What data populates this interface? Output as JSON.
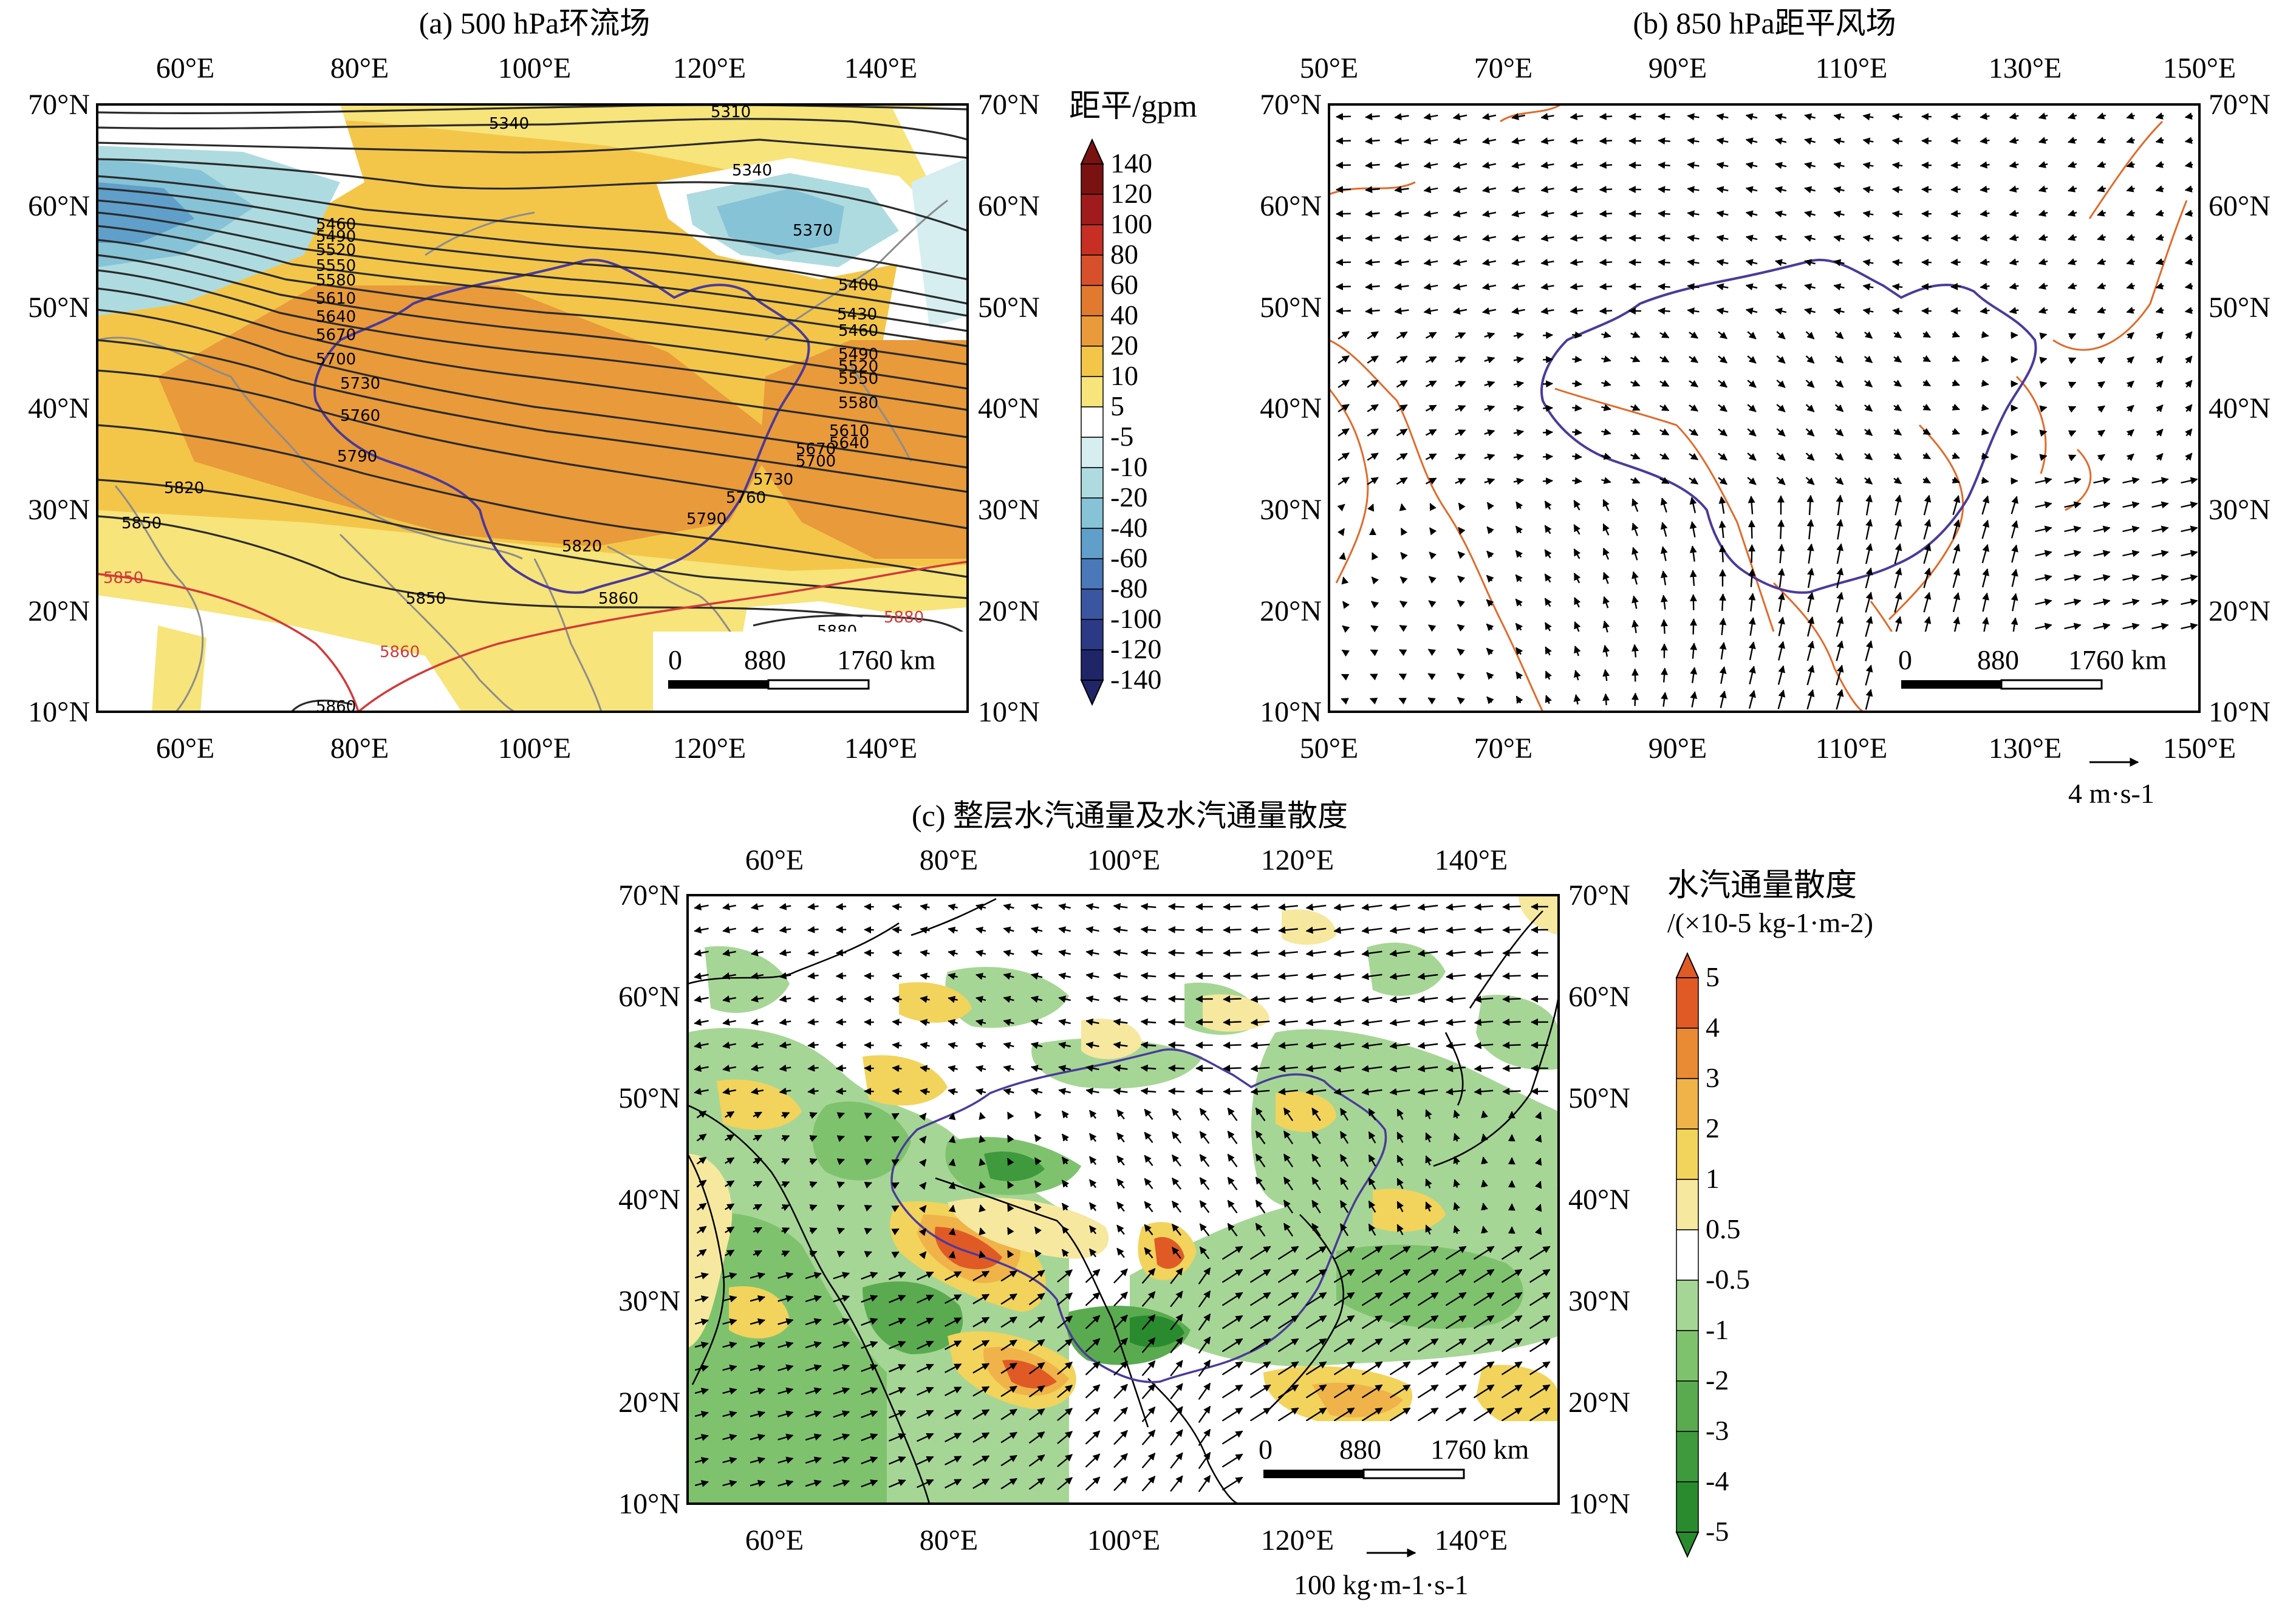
{
  "panels": {
    "a": {
      "title": "(a) 500 hPa环流场",
      "colorbar_title": "距平/gpm",
      "colorbar_levels": [
        "140",
        "120",
        "100",
        "80",
        "60",
        "40",
        "20",
        "10",
        "5",
        "-5",
        "-10",
        "-20",
        "-40",
        "-60",
        "-80",
        "-100",
        "-120",
        "-140"
      ],
      "contour_labels": [
        "5310",
        "5340",
        "5340",
        "5370",
        "5400",
        "5430",
        "5460",
        "5490",
        "5520",
        "5550",
        "5580",
        "5610",
        "5640",
        "5670",
        "5700",
        "5730",
        "5760",
        "5790",
        "5820",
        "5850",
        "5860",
        "5880",
        "5460",
        "5490",
        "5520",
        "5550",
        "5580",
        "5610",
        "5640",
        "5670",
        "5700",
        "5730",
        "5760",
        "5790",
        "5820",
        "5850",
        "5850",
        "5860",
        "5860",
        "5880"
      ],
      "x_ticks": [
        "60°E",
        "80°E",
        "100°E",
        "120°E",
        "140°E"
      ],
      "y_ticks": [
        "70°N",
        "60°N",
        "50°N",
        "40°N",
        "30°N",
        "20°N",
        "10°N"
      ],
      "scale_bar": {
        "labels": [
          "0",
          "880",
          "1760 km"
        ]
      }
    },
    "b": {
      "title": "(b) 850 hPa距平风场",
      "x_ticks": [
        "50°E",
        "70°E",
        "90°E",
        "110°E",
        "130°E",
        "150°E"
      ],
      "y_ticks": [
        "70°N",
        "60°N",
        "50°N",
        "40°N",
        "30°N",
        "20°N",
        "10°N"
      ],
      "scale_bar": {
        "labels": [
          "0",
          "880",
          "1760 km"
        ]
      },
      "ref_vector": "4 m·s-1"
    },
    "c": {
      "title": "(c) 整层水汽通量及水汽通量散度",
      "colorbar_title_1": "水汽通量散度",
      "colorbar_title_2": "/(×10-5 kg-1·m-2)",
      "colorbar_levels": [
        "5",
        "4",
        "3",
        "2",
        "1",
        "0.5",
        "-0.5",
        "-1",
        "-2",
        "-3",
        "-4",
        "-5"
      ],
      "x_ticks": [
        "60°E",
        "80°E",
        "100°E",
        "120°E",
        "140°E"
      ],
      "y_ticks": [
        "70°N",
        "60°N",
        "50°N",
        "40°N",
        "30°N",
        "20°N",
        "10°N"
      ],
      "scale_bar": {
        "labels": [
          "0",
          "880",
          "1760 km"
        ]
      },
      "ref_vector": "100 kg·m-1·s-1"
    }
  },
  "colors": {
    "anom_pos": [
      "#f7e47a",
      "#f3c64a",
      "#e99a3a",
      "#e07a2e",
      "#d8502b",
      "#c72f25",
      "#a01c1c",
      "#7a1212"
    ],
    "anom_neg": [
      "#d6eef0",
      "#aedbe0",
      "#86c3d6",
      "#5f9fca",
      "#4a78b8",
      "#3a56a0",
      "#2c3a86",
      "#1f2566"
    ],
    "div_pos": [
      "#f7e8a0",
      "#f2d35c",
      "#efb34a",
      "#e98a34",
      "#e05a26"
    ],
    "div_neg": [
      "#a6d695",
      "#7fc26e",
      "#5aab50",
      "#3e9a3c",
      "#2a8a2e"
    ],
    "border_orange": "#e06a2a",
    "border_purple": "#4b3a9a",
    "contour_red": "#d23a3a"
  }
}
